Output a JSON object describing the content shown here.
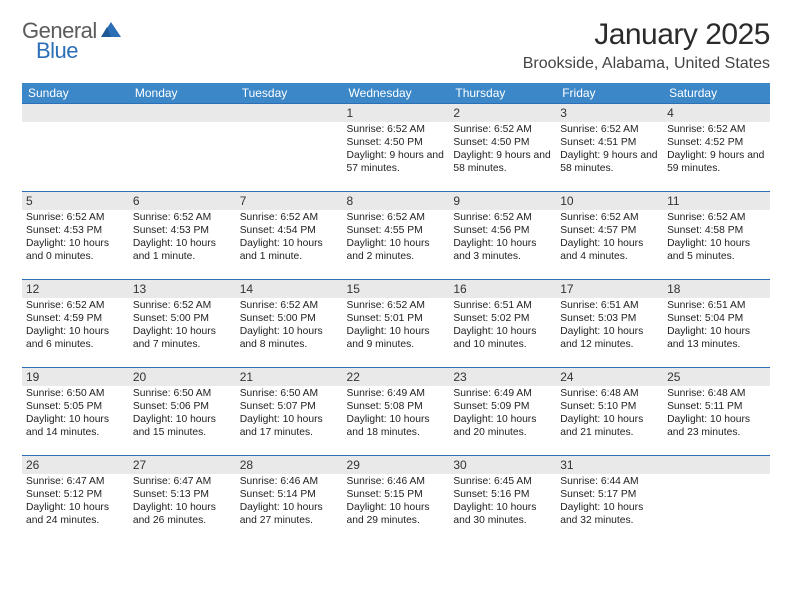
{
  "brand": {
    "part1": "General",
    "part2": "Blue"
  },
  "title": "January 2025",
  "location": "Brookside, Alabama, United States",
  "colors": {
    "header_bg": "#3b87c8",
    "header_text": "#ffffff",
    "rule": "#2d6fb7",
    "daynum_bg": "#e9e9e9",
    "brand_gray": "#5b5b5b",
    "brand_blue": "#2d6fb7"
  },
  "weekdays": [
    "Sunday",
    "Monday",
    "Tuesday",
    "Wednesday",
    "Thursday",
    "Friday",
    "Saturday"
  ],
  "cells": [
    {
      "n": "",
      "s": ""
    },
    {
      "n": "",
      "s": ""
    },
    {
      "n": "",
      "s": ""
    },
    {
      "n": "1",
      "s": "Sunrise: 6:52 AM\nSunset: 4:50 PM\nDaylight: 9 hours and 57 minutes."
    },
    {
      "n": "2",
      "s": "Sunrise: 6:52 AM\nSunset: 4:50 PM\nDaylight: 9 hours and 58 minutes."
    },
    {
      "n": "3",
      "s": "Sunrise: 6:52 AM\nSunset: 4:51 PM\nDaylight: 9 hours and 58 minutes."
    },
    {
      "n": "4",
      "s": "Sunrise: 6:52 AM\nSunset: 4:52 PM\nDaylight: 9 hours and 59 minutes."
    },
    {
      "n": "5",
      "s": "Sunrise: 6:52 AM\nSunset: 4:53 PM\nDaylight: 10 hours and 0 minutes."
    },
    {
      "n": "6",
      "s": "Sunrise: 6:52 AM\nSunset: 4:53 PM\nDaylight: 10 hours and 1 minute."
    },
    {
      "n": "7",
      "s": "Sunrise: 6:52 AM\nSunset: 4:54 PM\nDaylight: 10 hours and 1 minute."
    },
    {
      "n": "8",
      "s": "Sunrise: 6:52 AM\nSunset: 4:55 PM\nDaylight: 10 hours and 2 minutes."
    },
    {
      "n": "9",
      "s": "Sunrise: 6:52 AM\nSunset: 4:56 PM\nDaylight: 10 hours and 3 minutes."
    },
    {
      "n": "10",
      "s": "Sunrise: 6:52 AM\nSunset: 4:57 PM\nDaylight: 10 hours and 4 minutes."
    },
    {
      "n": "11",
      "s": "Sunrise: 6:52 AM\nSunset: 4:58 PM\nDaylight: 10 hours and 5 minutes."
    },
    {
      "n": "12",
      "s": "Sunrise: 6:52 AM\nSunset: 4:59 PM\nDaylight: 10 hours and 6 minutes."
    },
    {
      "n": "13",
      "s": "Sunrise: 6:52 AM\nSunset: 5:00 PM\nDaylight: 10 hours and 7 minutes."
    },
    {
      "n": "14",
      "s": "Sunrise: 6:52 AM\nSunset: 5:00 PM\nDaylight: 10 hours and 8 minutes."
    },
    {
      "n": "15",
      "s": "Sunrise: 6:52 AM\nSunset: 5:01 PM\nDaylight: 10 hours and 9 minutes."
    },
    {
      "n": "16",
      "s": "Sunrise: 6:51 AM\nSunset: 5:02 PM\nDaylight: 10 hours and 10 minutes."
    },
    {
      "n": "17",
      "s": "Sunrise: 6:51 AM\nSunset: 5:03 PM\nDaylight: 10 hours and 12 minutes."
    },
    {
      "n": "18",
      "s": "Sunrise: 6:51 AM\nSunset: 5:04 PM\nDaylight: 10 hours and 13 minutes."
    },
    {
      "n": "19",
      "s": "Sunrise: 6:50 AM\nSunset: 5:05 PM\nDaylight: 10 hours and 14 minutes."
    },
    {
      "n": "20",
      "s": "Sunrise: 6:50 AM\nSunset: 5:06 PM\nDaylight: 10 hours and 15 minutes."
    },
    {
      "n": "21",
      "s": "Sunrise: 6:50 AM\nSunset: 5:07 PM\nDaylight: 10 hours and 17 minutes."
    },
    {
      "n": "22",
      "s": "Sunrise: 6:49 AM\nSunset: 5:08 PM\nDaylight: 10 hours and 18 minutes."
    },
    {
      "n": "23",
      "s": "Sunrise: 6:49 AM\nSunset: 5:09 PM\nDaylight: 10 hours and 20 minutes."
    },
    {
      "n": "24",
      "s": "Sunrise: 6:48 AM\nSunset: 5:10 PM\nDaylight: 10 hours and 21 minutes."
    },
    {
      "n": "25",
      "s": "Sunrise: 6:48 AM\nSunset: 5:11 PM\nDaylight: 10 hours and 23 minutes."
    },
    {
      "n": "26",
      "s": "Sunrise: 6:47 AM\nSunset: 5:12 PM\nDaylight: 10 hours and 24 minutes."
    },
    {
      "n": "27",
      "s": "Sunrise: 6:47 AM\nSunset: 5:13 PM\nDaylight: 10 hours and 26 minutes."
    },
    {
      "n": "28",
      "s": "Sunrise: 6:46 AM\nSunset: 5:14 PM\nDaylight: 10 hours and 27 minutes."
    },
    {
      "n": "29",
      "s": "Sunrise: 6:46 AM\nSunset: 5:15 PM\nDaylight: 10 hours and 29 minutes."
    },
    {
      "n": "30",
      "s": "Sunrise: 6:45 AM\nSunset: 5:16 PM\nDaylight: 10 hours and 30 minutes."
    },
    {
      "n": "31",
      "s": "Sunrise: 6:44 AM\nSunset: 5:17 PM\nDaylight: 10 hours and 32 minutes."
    },
    {
      "n": "",
      "s": ""
    }
  ]
}
